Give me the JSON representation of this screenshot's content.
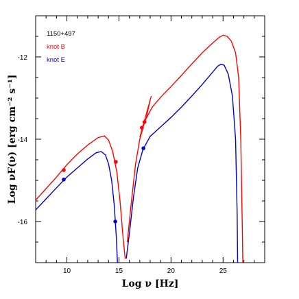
{
  "chart_data": {
    "type": "line",
    "title": "",
    "xlabel": "Log ν [Hz]",
    "ylabel": "Log νF(ν) [erg cm⁻² s⁻¹]",
    "xlim": [
      7,
      29
    ],
    "ylim": [
      -17,
      -11
    ],
    "x_ticks": [
      10,
      15,
      20,
      25
    ],
    "y_ticks": [
      -16,
      -14,
      -12
    ],
    "grid": false,
    "legend_position": "top-left",
    "annotation": "1150+497",
    "series": [
      {
        "name": "knot B",
        "color": "#ff0000",
        "line": [
          [
            7.0,
            -15.48
          ],
          [
            8.0,
            -15.2
          ],
          [
            9.0,
            -14.92
          ],
          [
            10.0,
            -14.62
          ],
          [
            11.0,
            -14.36
          ],
          [
            12.0,
            -14.14
          ],
          [
            13.0,
            -13.96
          ],
          [
            13.6,
            -13.92
          ],
          [
            14.0,
            -14.02
          ],
          [
            14.4,
            -14.3
          ],
          [
            14.8,
            -14.8
          ],
          [
            15.1,
            -15.5
          ],
          [
            15.4,
            -16.4
          ],
          [
            15.6,
            -16.9
          ]
        ],
        "line_upper": [
          [
            15.8,
            -16.5
          ],
          [
            16.2,
            -15.5
          ],
          [
            16.6,
            -14.6
          ],
          [
            17.0,
            -14.0
          ],
          [
            17.5,
            -13.55
          ],
          [
            18.2,
            -13.22
          ],
          [
            19.0,
            -12.98
          ],
          [
            20.0,
            -12.72
          ],
          [
            21.0,
            -12.45
          ],
          [
            22.0,
            -12.17
          ],
          [
            23.0,
            -11.9
          ],
          [
            24.0,
            -11.66
          ],
          [
            24.6,
            -11.53
          ],
          [
            25.0,
            -11.47
          ],
          [
            25.4,
            -11.5
          ],
          [
            25.8,
            -11.62
          ],
          [
            26.2,
            -11.9
          ],
          [
            26.5,
            -12.5
          ],
          [
            26.7,
            -14.0
          ],
          [
            26.85,
            -16.2
          ],
          [
            26.9,
            -17.0
          ]
        ],
        "points": [
          [
            9.7,
            -14.75
          ],
          [
            14.7,
            -14.55
          ],
          [
            17.2,
            -13.72
          ],
          [
            17.45,
            -13.58
          ]
        ],
        "xray_bowtie": [
          [
            17.0,
            -13.95
          ],
          [
            18.1,
            -12.95
          ],
          [
            17.6,
            -13.5
          ]
        ]
      },
      {
        "name": "knot E",
        "color": "#0000cc",
        "line": [
          [
            7.0,
            -15.72
          ],
          [
            8.0,
            -15.45
          ],
          [
            9.0,
            -15.18
          ],
          [
            10.0,
            -14.92
          ],
          [
            11.0,
            -14.7
          ],
          [
            12.0,
            -14.48
          ],
          [
            12.8,
            -14.33
          ],
          [
            13.3,
            -14.3
          ],
          [
            13.7,
            -14.38
          ],
          [
            14.0,
            -14.6
          ],
          [
            14.3,
            -15.0
          ],
          [
            14.55,
            -15.6
          ],
          [
            14.75,
            -16.4
          ],
          [
            14.85,
            -17.0
          ]
        ],
        "line_upper": [
          [
            15.7,
            -16.9
          ],
          [
            16.0,
            -16.3
          ],
          [
            16.4,
            -15.4
          ],
          [
            16.8,
            -14.7
          ],
          [
            17.3,
            -14.25
          ],
          [
            18.0,
            -13.93
          ],
          [
            19.0,
            -13.7
          ],
          [
            20.0,
            -13.47
          ],
          [
            21.0,
            -13.22
          ],
          [
            22.0,
            -12.95
          ],
          [
            23.0,
            -12.67
          ],
          [
            24.0,
            -12.37
          ],
          [
            24.5,
            -12.22
          ],
          [
            24.8,
            -12.18
          ],
          [
            25.1,
            -12.2
          ],
          [
            25.5,
            -12.42
          ],
          [
            25.9,
            -12.95
          ],
          [
            26.2,
            -14.0
          ],
          [
            26.35,
            -15.8
          ],
          [
            26.4,
            -17.0
          ]
        ],
        "points": [
          [
            9.7,
            -14.98
          ],
          [
            14.65,
            -16.0
          ],
          [
            17.35,
            -14.22
          ]
        ]
      }
    ]
  }
}
